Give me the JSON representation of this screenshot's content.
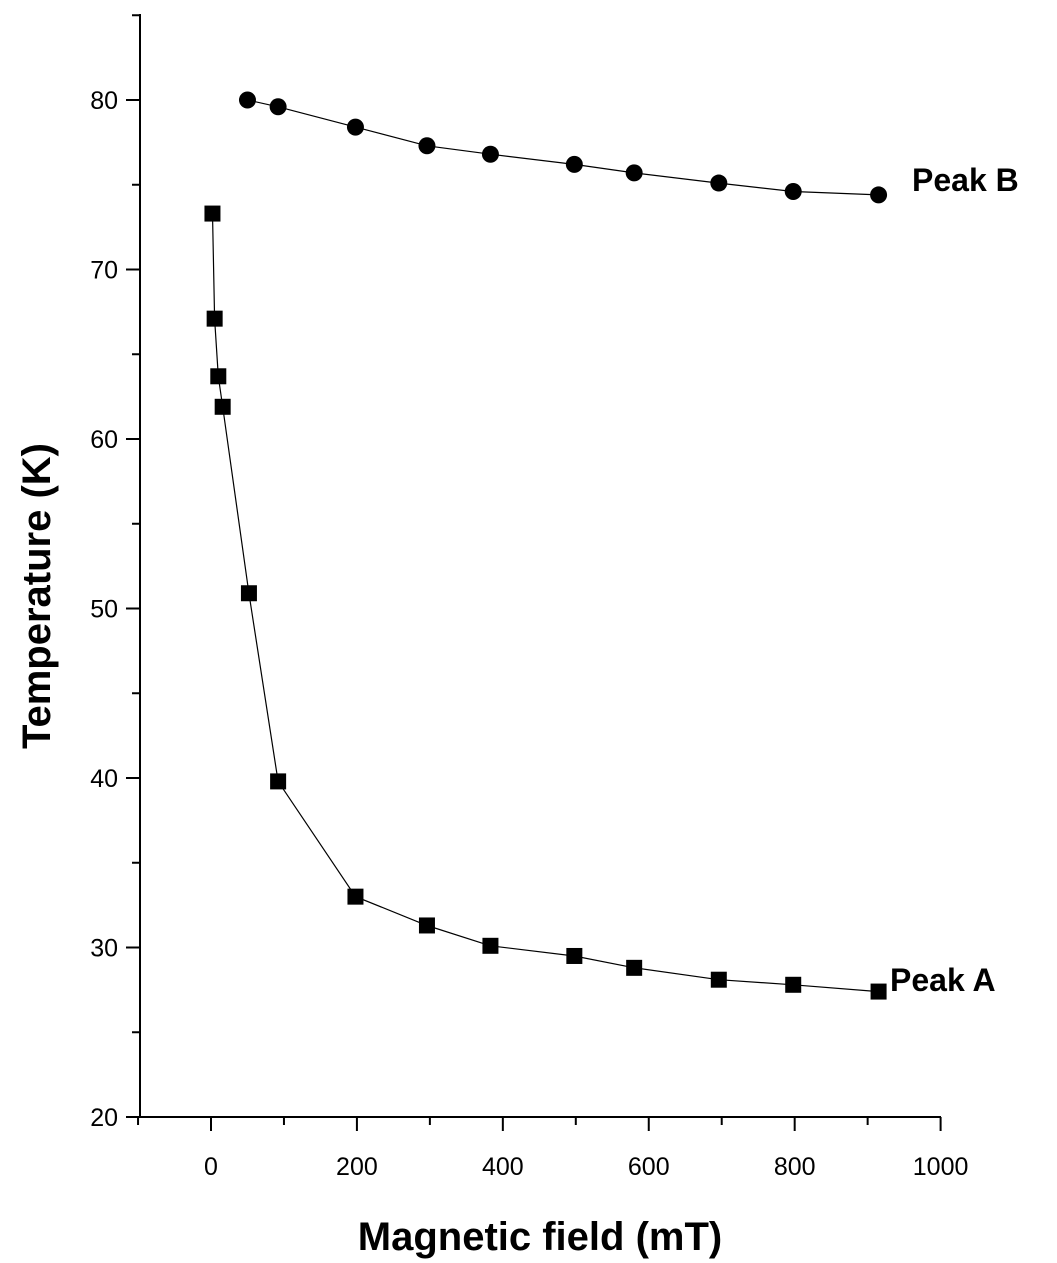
{
  "chart_data": {
    "type": "scatter",
    "xlabel": "Magnetic field (mT)",
    "ylabel": "Temperature (K)",
    "xlim": [
      -100,
      1000
    ],
    "ylim": [
      20,
      85
    ],
    "x_ticks": [
      0,
      200,
      400,
      600,
      800,
      1000
    ],
    "y_ticks": [
      20,
      30,
      40,
      50,
      60,
      70,
      80
    ],
    "grid": false,
    "series": [
      {
        "name": "Peak B",
        "marker": "circle",
        "color": "#000000",
        "x": [
          50,
          92,
          198,
          296,
          383,
          498,
          580,
          696,
          798,
          915
        ],
        "y": [
          80.0,
          79.6,
          78.4,
          77.3,
          76.8,
          76.2,
          75.7,
          75.1,
          74.6,
          74.4
        ]
      },
      {
        "name": "Peak A",
        "marker": "square",
        "color": "#000000",
        "x": [
          2,
          5,
          10,
          16,
          52,
          92,
          198,
          296,
          383,
          498,
          580,
          696,
          798,
          915
        ],
        "y": [
          73.3,
          67.1,
          63.7,
          61.9,
          50.9,
          39.8,
          33.0,
          31.3,
          30.1,
          29.5,
          28.8,
          28.1,
          27.8,
          27.4
        ]
      }
    ]
  }
}
